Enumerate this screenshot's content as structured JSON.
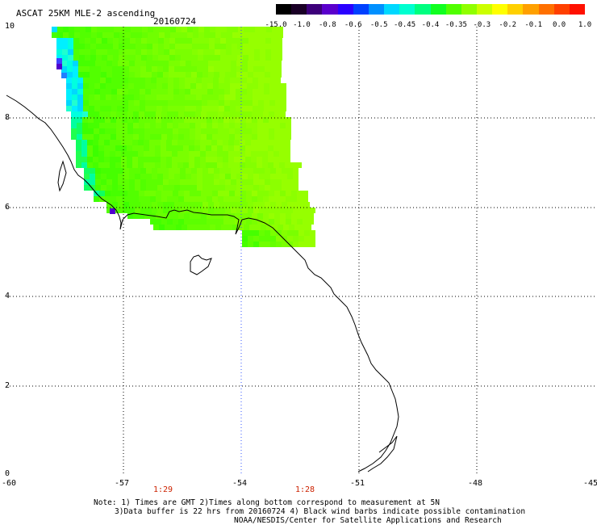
{
  "header": {
    "title": "ASCAT 25KM MLE-2 ascending",
    "date": "20160724"
  },
  "colorbar": {
    "labels": [
      "-15.0",
      "-1.0",
      "-0.8",
      "-0.6",
      "-0.5",
      "-0.45",
      "-0.4",
      "-0.35",
      "-0.3",
      "-0.2",
      "-0.1",
      "0.0",
      "1.0"
    ],
    "colors": [
      "#000000",
      "#1a0026",
      "#3d007a",
      "#5a00cc",
      "#2a00ff",
      "#0040ff",
      "#0090ff",
      "#00d8ff",
      "#00ffd0",
      "#00ff80",
      "#10ff20",
      "#50ff00",
      "#90ff00",
      "#ccff00",
      "#ffff00",
      "#ffd000",
      "#ffa000",
      "#ff7000",
      "#ff4000",
      "#ff1000"
    ]
  },
  "axes": {
    "lat_labels": [
      "10",
      "8",
      "6",
      "4",
      "2",
      "0"
    ],
    "lon_labels": [
      "-60",
      "-57",
      "-54",
      "-51",
      "-48",
      "-45"
    ]
  },
  "times": [
    "1:29",
    "1:28"
  ],
  "notes": {
    "line1": "Note: 1) Times are GMT 2)Times along bottom correspond to measurement at 5N",
    "line2": "3)Data buffer is 22 hrs from 20160724 4) Black wind barbs indicate possible contamination",
    "line3": "NOAA/NESDIS/Center for Satellite Applications and Research"
  },
  "map": {
    "lon_range": [
      -60,
      -45
    ],
    "lat_range": [
      0,
      10
    ],
    "grid": true
  }
}
